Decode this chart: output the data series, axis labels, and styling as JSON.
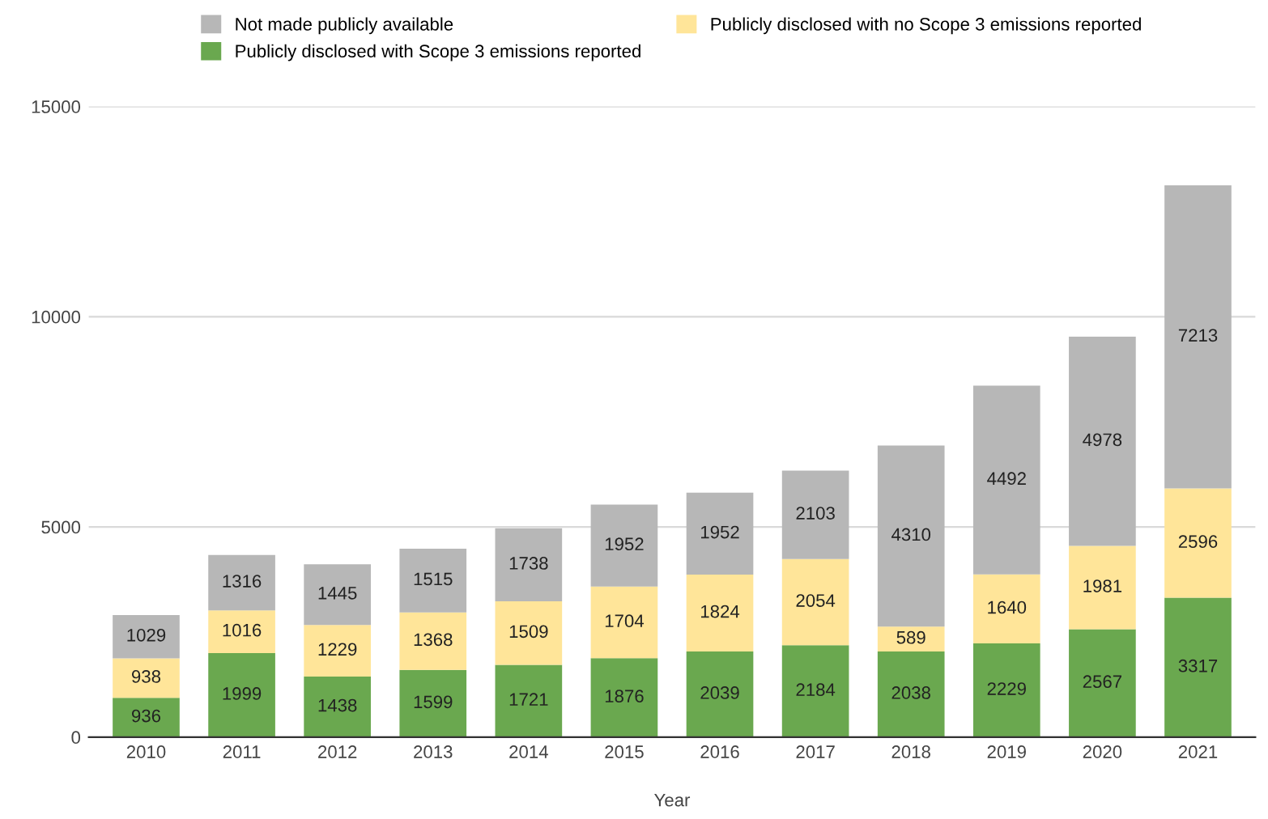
{
  "chart_data": {
    "type": "bar",
    "stacked": true,
    "xlabel": "Year",
    "categories": [
      "2010",
      "2011",
      "2012",
      "2013",
      "2014",
      "2015",
      "2016",
      "2017",
      "2018",
      "2019",
      "2020",
      "2021"
    ],
    "series": [
      {
        "name": "Publicly disclosed with Scope 3 emissions reported",
        "color": "#6aa84f",
        "values": [
          936,
          1999,
          1438,
          1599,
          1721,
          1876,
          2039,
          2184,
          2038,
          2229,
          2567,
          3317
        ]
      },
      {
        "name": "Publicly disclosed with no Scope 3 emissions reported",
        "color": "#ffe599",
        "values": [
          938,
          1016,
          1229,
          1368,
          1509,
          1704,
          1824,
          2054,
          589,
          1640,
          1981,
          2596
        ]
      },
      {
        "name": "Not made publicly available",
        "color": "#b7b7b7",
        "values": [
          1029,
          1316,
          1445,
          1515,
          1738,
          1952,
          1952,
          2103,
          4310,
          4492,
          4978,
          7213
        ]
      }
    ],
    "ylim": [
      0,
      15000
    ],
    "yticks": [
      0,
      5000,
      10000,
      15000
    ],
    "grid": "y",
    "legend": "top",
    "data_labels": true
  }
}
